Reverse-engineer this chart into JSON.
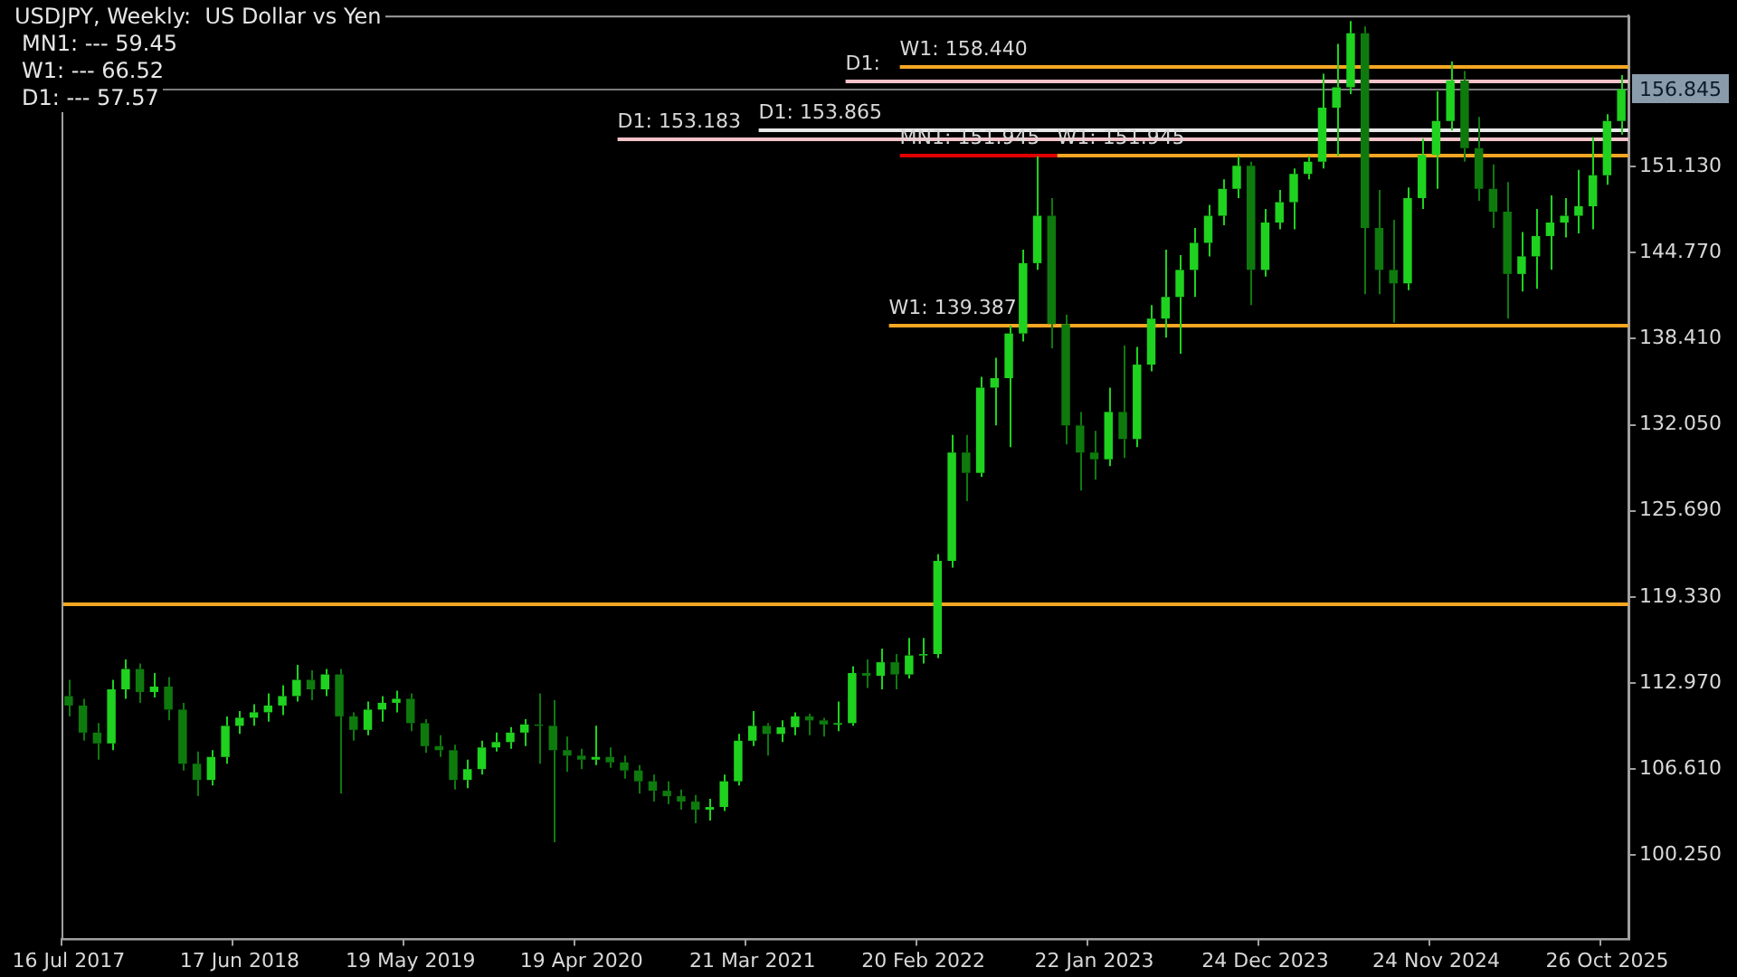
{
  "chart_data": {
    "type": "candlestick",
    "title": "USDJPY, Weekly:  US Dollar vs Yen",
    "annotations": [
      "MN1: --- 59.45",
      "W1: --- 66.52",
      "D1: --- 57.57"
    ],
    "colors": [
      "#0e7a0e",
      "#0e7a0e",
      "#0e7a0e",
      "#1fd21f",
      "#1fd21f",
      "#0e7a0e",
      "#1fd21f",
      "#0e7a0e",
      "#0e7a0e",
      "#0e7a0e",
      "#1fd21f",
      "#1fd21f",
      "#1fd21f",
      "#1fd21f",
      "#1fd21f",
      "#1fd21f",
      "#1fd21f",
      "#0e7a0e",
      "#1fd21f",
      "#0e7a0e",
      "#0e7a0e",
      "#1fd21f",
      "#1fd21f",
      "#1fd21f",
      "#0e7a0e",
      "#0e7a0e",
      "#0e7a0e",
      "#0e7a0e",
      "#1fd21f",
      "#1fd21f",
      "#1fd21f",
      "#1fd21f",
      "#1fd21f",
      "#0e7a0e",
      "#0e7a0e",
      "#0e7a0e",
      "#0e7a0e",
      "#1fd21f",
      "#0e7a0e",
      "#0e7a0e",
      "#0e7a0e",
      "#0e7a0e",
      "#0e7a0e",
      "#0e7a0e",
      "#0e7a0e",
      "#1fd21f",
      "#1fd21f",
      "#1fd21f",
      "#1fd21f",
      "#0e7a0e",
      "#1fd21f",
      "#1fd21f",
      "#0e7a0e",
      "#0e7a0e",
      "#1fd21f",
      "#1fd21f",
      "#0e7a0e",
      "#1fd21f",
      "#0e7a0e",
      "#1fd21f",
      "#1fd21f",
      "#1fd21f",
      "#1fd21f",
      "#0e7a0e",
      "#1fd21f",
      "#1fd21f",
      "#1fd21f",
      "#1fd21f",
      "#1fd21f",
      "#0e7a0e",
      "#0e7a0e",
      "#0e7a0e",
      "#0e7a0e",
      "#1fd21f",
      "#0e7a0e",
      "#1fd21f",
      "#1fd21f",
      "#1fd21f",
      "#1fd21f",
      "#1fd21f",
      "#1fd21f",
      "#1fd21f",
      "#1fd21f",
      "#0e7a0e",
      "#1fd21f",
      "#1fd21f",
      "#1fd21f",
      "#1fd21f",
      "#1fd21f",
      "#1fd21f",
      "#1fd21f",
      "#0e7a0e",
      "#0e7a0e",
      "#0e7a0e",
      "#1fd21f",
      "#1fd21f",
      "#1fd21f",
      "#1fd21f",
      "#0e7a0e",
      "#0e7a0e",
      "#0e7a0e",
      "#0e7a0e",
      "#1fd21f",
      "#1fd21f",
      "#1fd21f",
      "#1fd21f",
      "#1fd21f",
      "#1fd21f",
      "#1fd21f",
      "#1fd21f"
    ],
    "categories": [
      "16 Jul 2017",
      null,
      null,
      null,
      null,
      null,
      null,
      null,
      null,
      null,
      null,
      null,
      "17 Jun 2018",
      null,
      null,
      null,
      null,
      null,
      null,
      null,
      null,
      null,
      null,
      null,
      "19 May 2019",
      null,
      null,
      null,
      null,
      null,
      null,
      null,
      null,
      null,
      null,
      null,
      "19 Apr 2020",
      null,
      null,
      null,
      null,
      null,
      null,
      null,
      null,
      null,
      null,
      null,
      "21 Mar 2021",
      null,
      null,
      null,
      null,
      null,
      null,
      null,
      null,
      null,
      null,
      null,
      "20 Feb 2022",
      null,
      null,
      null,
      null,
      null,
      null,
      null,
      null,
      null,
      null,
      null,
      "22 Jan 2023",
      null,
      null,
      null,
      null,
      null,
      null,
      null,
      null,
      null,
      null,
      null,
      "24 Dec 2023",
      null,
      null,
      null,
      null,
      null,
      null,
      null,
      null,
      null,
      null,
      null,
      "24 Nov 2024",
      null,
      null,
      null,
      null,
      null,
      null,
      null,
      null,
      null,
      null,
      null,
      "26 Oct 2025",
      null
    ],
    "ohlc": [
      [
        112.0,
        113.2,
        110.5,
        111.3
      ],
      [
        111.3,
        111.8,
        108.7,
        109.3
      ],
      [
        109.3,
        110.0,
        107.3,
        108.5
      ],
      [
        108.5,
        113.2,
        108.0,
        112.5
      ],
      [
        112.5,
        114.7,
        111.8,
        114.0
      ],
      [
        114.0,
        114.4,
        111.5,
        112.3
      ],
      [
        112.3,
        113.7,
        111.9,
        112.7
      ],
      [
        112.7,
        113.4,
        110.2,
        111.0
      ],
      [
        111.0,
        111.5,
        106.5,
        107.0
      ],
      [
        107.0,
        107.9,
        104.6,
        105.8
      ],
      [
        105.8,
        108.0,
        105.4,
        107.5
      ],
      [
        107.5,
        110.5,
        107.0,
        109.8
      ],
      [
        109.8,
        110.9,
        109.2,
        110.4
      ],
      [
        110.4,
        111.4,
        109.8,
        110.8
      ],
      [
        110.8,
        112.2,
        110.1,
        111.3
      ],
      [
        111.3,
        112.8,
        110.6,
        112.0
      ],
      [
        112.0,
        114.3,
        111.6,
        113.2
      ],
      [
        113.2,
        113.9,
        111.7,
        112.5
      ],
      [
        112.5,
        114.0,
        112.0,
        113.6
      ],
      [
        113.6,
        114.0,
        104.8,
        110.5
      ],
      [
        110.5,
        110.8,
        108.7,
        109.5
      ],
      [
        109.5,
        111.6,
        109.1,
        111.0
      ],
      [
        111.0,
        112.0,
        110.1,
        111.5
      ],
      [
        111.5,
        112.4,
        110.8,
        111.8
      ],
      [
        111.8,
        112.2,
        109.4,
        110.0
      ],
      [
        110.0,
        110.3,
        107.8,
        108.3
      ],
      [
        108.3,
        109.1,
        107.5,
        108.0
      ],
      [
        108.0,
        108.4,
        105.1,
        105.8
      ],
      [
        105.8,
        107.3,
        105.2,
        106.6
      ],
      [
        106.6,
        108.7,
        106.2,
        108.2
      ],
      [
        108.2,
        109.3,
        107.9,
        108.6
      ],
      [
        108.6,
        109.7,
        108.1,
        109.3
      ],
      [
        109.3,
        110.3,
        108.3,
        109.9
      ],
      [
        109.9,
        112.2,
        107.0,
        109.8
      ],
      [
        109.8,
        111.7,
        101.2,
        108.0
      ],
      [
        108.0,
        109.0,
        106.4,
        107.6
      ],
      [
        107.6,
        108.1,
        106.6,
        107.3
      ],
      [
        107.3,
        109.8,
        106.9,
        107.5
      ],
      [
        107.5,
        108.2,
        106.7,
        107.1
      ],
      [
        107.1,
        107.6,
        105.9,
        106.5
      ],
      [
        106.5,
        106.9,
        104.8,
        105.7
      ],
      [
        105.7,
        106.2,
        104.2,
        105.0
      ],
      [
        105.0,
        105.7,
        104.0,
        104.6
      ],
      [
        104.6,
        105.1,
        103.6,
        104.2
      ],
      [
        104.2,
        104.7,
        102.6,
        103.6
      ],
      [
        103.6,
        104.4,
        102.8,
        103.8
      ],
      [
        103.8,
        106.2,
        103.5,
        105.7
      ],
      [
        105.7,
        109.2,
        105.4,
        108.7
      ],
      [
        108.7,
        110.9,
        108.3,
        109.8
      ],
      [
        109.8,
        110.0,
        107.6,
        109.2
      ],
      [
        109.2,
        110.2,
        108.6,
        109.7
      ],
      [
        109.7,
        110.8,
        109.1,
        110.5
      ],
      [
        110.5,
        110.7,
        109.1,
        110.2
      ],
      [
        110.2,
        110.4,
        109.0,
        109.9
      ],
      [
        109.9,
        111.6,
        109.4,
        110.0
      ],
      [
        110.0,
        114.2,
        109.8,
        113.7
      ],
      [
        113.7,
        114.7,
        112.6,
        113.5
      ],
      [
        113.5,
        115.5,
        112.5,
        114.5
      ],
      [
        114.5,
        115.1,
        112.5,
        113.6
      ],
      [
        113.6,
        116.3,
        113.3,
        115.0
      ],
      [
        115.0,
        116.3,
        114.4,
        115.1
      ],
      [
        115.1,
        122.5,
        114.8,
        122.0
      ],
      [
        122.0,
        131.3,
        121.5,
        130.0
      ],
      [
        130.0,
        131.3,
        126.4,
        128.5
      ],
      [
        128.5,
        135.6,
        128.2,
        134.8
      ],
      [
        134.8,
        137.0,
        132.0,
        135.5
      ],
      [
        135.5,
        139.4,
        130.4,
        138.8
      ],
      [
        138.8,
        145.0,
        138.2,
        144.0
      ],
      [
        144.0,
        151.9,
        143.5,
        147.5
      ],
      [
        147.5,
        148.8,
        137.7,
        139.5
      ],
      [
        139.5,
        140.2,
        130.6,
        132.0
      ],
      [
        132.0,
        133.0,
        127.2,
        130.0
      ],
      [
        130.0,
        131.6,
        128.0,
        129.5
      ],
      [
        129.5,
        134.8,
        129.0,
        133.0
      ],
      [
        133.0,
        137.9,
        129.6,
        131.0
      ],
      [
        131.0,
        137.8,
        130.4,
        136.5
      ],
      [
        136.5,
        140.9,
        136.0,
        139.9
      ],
      [
        139.9,
        145.0,
        138.5,
        141.5
      ],
      [
        141.5,
        144.6,
        137.3,
        143.5
      ],
      [
        143.5,
        146.6,
        141.5,
        145.5
      ],
      [
        145.5,
        148.3,
        144.5,
        147.5
      ],
      [
        147.5,
        150.2,
        146.8,
        149.5
      ],
      [
        149.5,
        151.9,
        148.8,
        151.2
      ],
      [
        151.2,
        151.5,
        140.9,
        143.5
      ],
      [
        143.5,
        148.0,
        143.0,
        147.0
      ],
      [
        147.0,
        149.4,
        146.5,
        148.5
      ],
      [
        148.5,
        151.0,
        146.5,
        150.6
      ],
      [
        150.6,
        151.9,
        150.2,
        151.5
      ],
      [
        151.5,
        158.0,
        151.0,
        155.5
      ],
      [
        155.5,
        160.2,
        151.9,
        157.0
      ],
      [
        157.0,
        161.9,
        156.5,
        161.0
      ],
      [
        161.0,
        161.5,
        141.7,
        146.6
      ],
      [
        146.6,
        149.4,
        141.7,
        143.5
      ],
      [
        143.5,
        147.2,
        139.6,
        142.5
      ],
      [
        142.5,
        149.6,
        142.0,
        148.8
      ],
      [
        148.8,
        153.2,
        148.0,
        152.0
      ],
      [
        152.0,
        156.7,
        149.5,
        154.5
      ],
      [
        154.5,
        158.9,
        153.8,
        157.5
      ],
      [
        157.5,
        158.2,
        151.5,
        152.5
      ],
      [
        152.5,
        154.8,
        148.6,
        149.5
      ],
      [
        149.5,
        151.3,
        146.6,
        147.8
      ],
      [
        147.8,
        150.0,
        139.9,
        143.2
      ],
      [
        143.2,
        146.3,
        141.9,
        144.5
      ],
      [
        144.5,
        148.0,
        142.1,
        146.0
      ],
      [
        146.0,
        149.0,
        143.5,
        147.0
      ],
      [
        147.0,
        148.8,
        145.9,
        147.5
      ],
      [
        147.5,
        150.9,
        146.2,
        148.2
      ],
      [
        148.2,
        153.3,
        146.5,
        150.5
      ],
      [
        150.5,
        155.0,
        149.8,
        154.5
      ],
      [
        154.5,
        157.9,
        153.5,
        156.845
      ]
    ],
    "ylim": [
      94.07,
      162.3
    ],
    "yticks": [
      {
        "value": 100.25,
        "label": "100.250"
      },
      {
        "value": 106.61,
        "label": "106.610"
      },
      {
        "value": 112.97,
        "label": "112.970"
      },
      {
        "value": 119.33,
        "label": "119.330"
      },
      {
        "value": 125.69,
        "label": "125.690"
      },
      {
        "value": 132.05,
        "label": "132.050"
      },
      {
        "value": 138.41,
        "label": "138.410"
      },
      {
        "value": 144.77,
        "label": "144.770"
      },
      {
        "value": 151.13,
        "label": "151.130"
      }
    ],
    "ref_lines": [
      {
        "axis": "y",
        "value": 118.83,
        "color": "#f5a623"
      },
      {
        "axis": "y",
        "value": 139.387,
        "label": "W1: 139.387",
        "color": "#f5a623"
      },
      {
        "axis": "y",
        "value": 151.945,
        "label": "MN1: 151.945",
        "color": "#e00000"
      },
      {
        "axis": "y",
        "value": 151.945,
        "label": "W1: 151.945",
        "color": "#f5a623"
      },
      {
        "axis": "y",
        "value": 158.44,
        "label": "W1: 158.440",
        "color": "#f5a623"
      },
      {
        "axis": "y",
        "value": 157.4,
        "label": "D1:",
        "color": "#f4c2c8"
      },
      {
        "axis": "y",
        "value": 153.865,
        "label": "D1: 153.865",
        "color": "#e8e8e8"
      },
      {
        "axis": "y",
        "value": 153.183,
        "label": "D1: 153.183",
        "color": "#f4c2c8"
      },
      {
        "axis": "y",
        "value": 156.845,
        "label": "156.845",
        "color": "#7c7c7c",
        "line_style": "solid"
      }
    ]
  }
}
